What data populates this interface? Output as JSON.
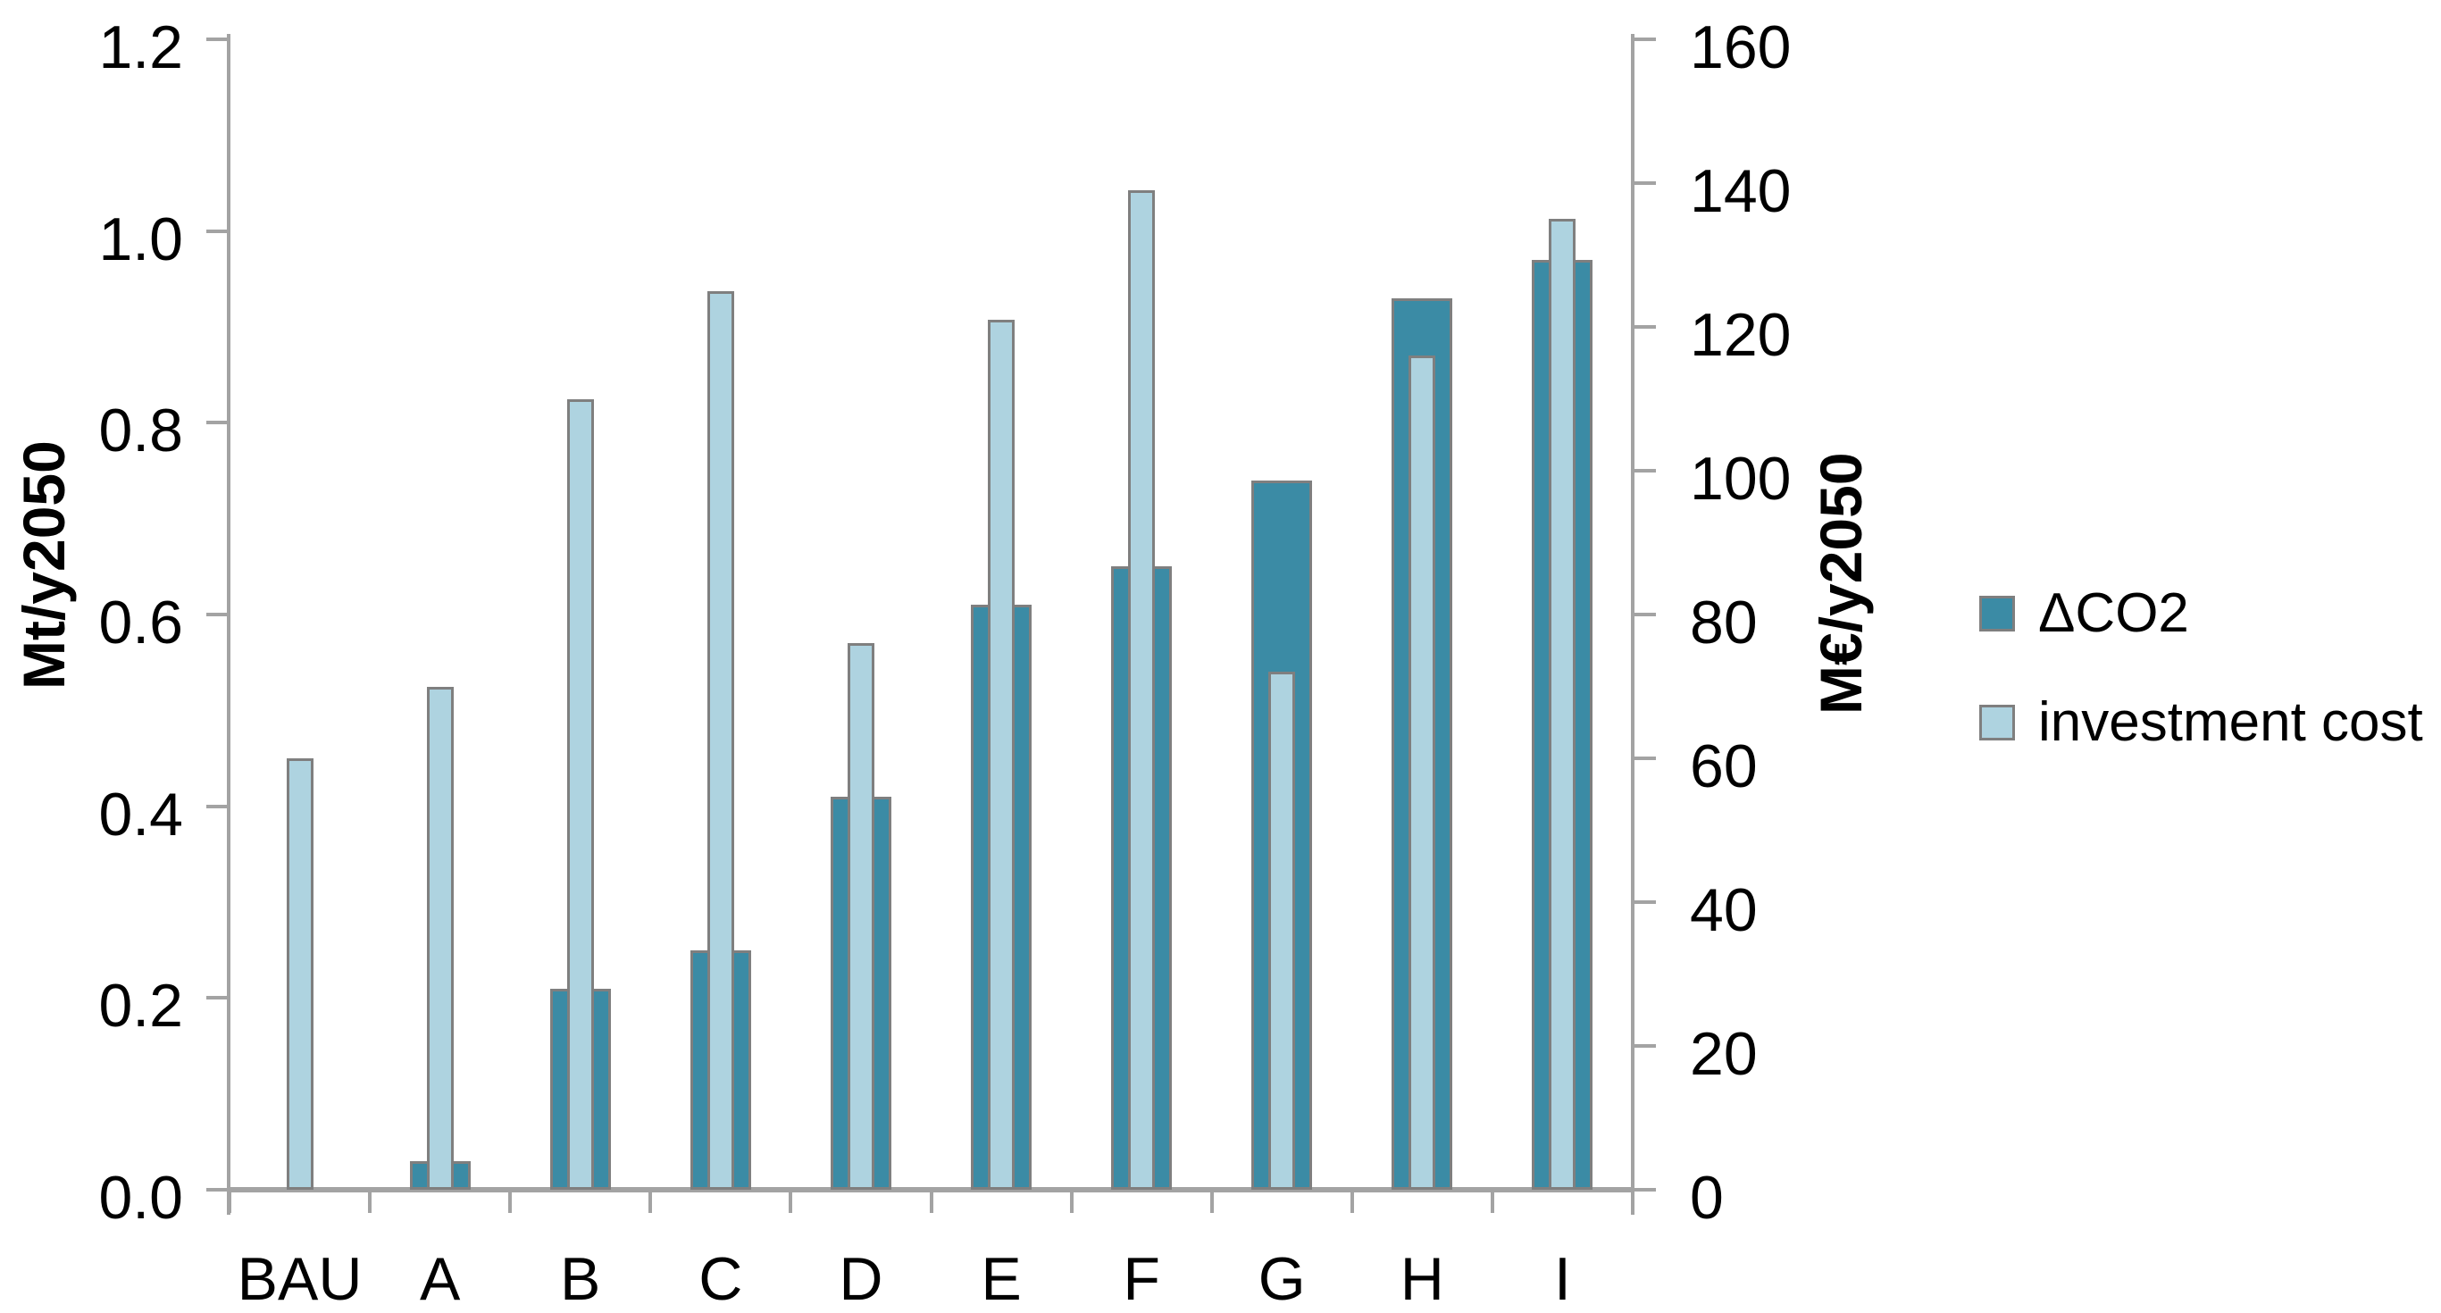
{
  "chart_data": {
    "type": "bar",
    "title": "",
    "categories": [
      "BAU",
      "A",
      "B",
      "C",
      "D",
      "E",
      "F",
      "G",
      "H",
      "I"
    ],
    "series": [
      {
        "name": "ΔCO2",
        "axis": "left",
        "unit": "Mt/y2050",
        "bar_style": "wide",
        "color": "#3B8BA5",
        "values": [
          0,
          0.03,
          0.21,
          0.25,
          0.41,
          0.61,
          0.65,
          0.74,
          0.93,
          0.97
        ]
      },
      {
        "name": "investment cost",
        "axis": "right",
        "unit": "M€/y2050",
        "bar_style": "narrow",
        "color": "#AED3E0",
        "values": [
          60,
          70,
          110,
          125,
          76,
          121,
          139,
          72,
          116,
          135
        ]
      }
    ],
    "left_axis": {
      "label": "Mt/y2050",
      "min": 0,
      "max": 1.2,
      "step": 0.2,
      "ticks": [
        "0.0",
        "0.2",
        "0.4",
        "0.6",
        "0.8",
        "1.0",
        "1.2"
      ]
    },
    "right_axis": {
      "label": "M€/y2050",
      "min": 0,
      "max": 160,
      "step": 20,
      "ticks": [
        "0",
        "20",
        "40",
        "60",
        "80",
        "100",
        "120",
        "140",
        "160"
      ]
    },
    "legend_position": "right",
    "grid": false
  },
  "colors": {
    "dark_series": "#3B8BA5",
    "light_series": "#AED3E0",
    "bar_border": "#7F7F7F",
    "axis_line": "#A3A3A3",
    "text": "#000000",
    "background": "#FFFFFF"
  }
}
